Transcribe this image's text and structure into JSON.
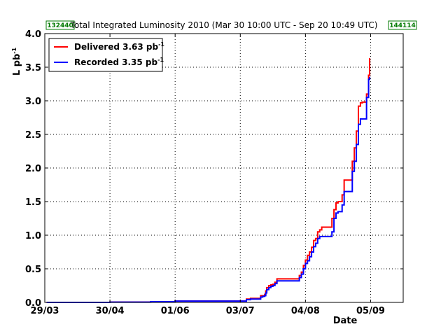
{
  "run_badges": {
    "start": "132440",
    "end": "144114",
    "border_color": "#007a00"
  },
  "chart_data": {
    "type": "line",
    "title": "Total Integrated Luminosity 2010 (Mar 30 10:00 UTC - Sep 20 10:49 UTC)",
    "xlabel": "Date",
    "ylabel": {
      "main": "L pb",
      "sup": "-1"
    },
    "xlim": [
      "2010-03-29",
      "2010-09-21"
    ],
    "ylim": [
      0,
      4.0
    ],
    "x_ticks": [
      {
        "date": "2010-03-29",
        "label": "29/03"
      },
      {
        "date": "2010-04-30",
        "label": "30/04"
      },
      {
        "date": "2010-06-01",
        "label": "01/06"
      },
      {
        "date": "2010-07-03",
        "label": "03/07"
      },
      {
        "date": "2010-08-04",
        "label": "04/08"
      },
      {
        "date": "2010-09-05",
        "label": "05/09"
      }
    ],
    "y_ticks": [
      {
        "value": 0.0,
        "label": "0.0"
      },
      {
        "value": 0.5,
        "label": "0.5"
      },
      {
        "value": 1.0,
        "label": "1.0"
      },
      {
        "value": 1.5,
        "label": "1.5"
      },
      {
        "value": 2.0,
        "label": "2.0"
      },
      {
        "value": 2.5,
        "label": "2.5"
      },
      {
        "value": 3.0,
        "label": "3.0"
      },
      {
        "value": 3.5,
        "label": "3.5"
      },
      {
        "value": 4.0,
        "label": "4.0"
      }
    ],
    "grid": true,
    "legend_position": "top-left",
    "series": [
      {
        "name": "Delivered 3.63 pb",
        "name_sup": "-1",
        "color": "#ff0000",
        "x": [
          "2010-03-30",
          "2010-04-30",
          "2010-05-20",
          "2010-06-01",
          "2010-06-30",
          "2010-07-06",
          "2010-07-08",
          "2010-07-13",
          "2010-07-14",
          "2010-07-15",
          "2010-07-15T12",
          "2010-07-16",
          "2010-07-17",
          "2010-07-18",
          "2010-07-19",
          "2010-07-20",
          "2010-07-21",
          "2010-07-22",
          "2010-07-31",
          "2010-08-01",
          "2010-08-02",
          "2010-08-03",
          "2010-08-04",
          "2010-08-05",
          "2010-08-06",
          "2010-08-07",
          "2010-08-08",
          "2010-08-09",
          "2010-08-10",
          "2010-08-11",
          "2010-08-12",
          "2010-08-13",
          "2010-08-17",
          "2010-08-18",
          "2010-08-19",
          "2010-08-20",
          "2010-08-22",
          "2010-08-23",
          "2010-08-25",
          "2010-08-27",
          "2010-08-28",
          "2010-08-29",
          "2010-08-30",
          "2010-08-31",
          "2010-09-01",
          "2010-09-03",
          "2010-09-04",
          "2010-09-04T12"
        ],
        "y": [
          0.0,
          0.005,
          0.01,
          0.02,
          0.02,
          0.05,
          0.06,
          0.1,
          0.1,
          0.12,
          0.17,
          0.22,
          0.25,
          0.26,
          0.27,
          0.3,
          0.35,
          0.35,
          0.35,
          0.4,
          0.45,
          0.55,
          0.63,
          0.7,
          0.75,
          0.82,
          0.92,
          0.95,
          1.05,
          1.08,
          1.12,
          1.12,
          1.25,
          1.38,
          1.48,
          1.5,
          1.6,
          1.82,
          1.82,
          2.1,
          2.3,
          2.55,
          2.92,
          2.97,
          2.98,
          3.1,
          3.38,
          3.63
        ]
      },
      {
        "name": "Recorded 3.35 pb",
        "name_sup": "-1",
        "color": "#0000ff",
        "x": [
          "2010-03-30",
          "2010-04-30",
          "2010-05-20",
          "2010-06-01",
          "2010-06-30",
          "2010-07-06",
          "2010-07-08",
          "2010-07-13",
          "2010-07-14",
          "2010-07-15",
          "2010-07-15T12",
          "2010-07-16",
          "2010-07-17",
          "2010-07-18",
          "2010-07-19",
          "2010-07-20",
          "2010-07-21",
          "2010-07-22",
          "2010-07-31",
          "2010-08-01",
          "2010-08-02",
          "2010-08-03",
          "2010-08-04",
          "2010-08-05",
          "2010-08-06",
          "2010-08-07",
          "2010-08-08",
          "2010-08-09",
          "2010-08-10",
          "2010-08-11",
          "2010-08-12",
          "2010-08-13",
          "2010-08-17",
          "2010-08-18",
          "2010-08-19",
          "2010-08-20",
          "2010-08-22",
          "2010-08-23",
          "2010-08-25",
          "2010-08-27",
          "2010-08-28",
          "2010-08-29",
          "2010-08-30",
          "2010-08-31",
          "2010-09-01",
          "2010-09-03",
          "2010-09-04",
          "2010-09-04T12"
        ],
        "y": [
          0.0,
          0.004,
          0.01,
          0.02,
          0.02,
          0.04,
          0.05,
          0.08,
          0.09,
          0.1,
          0.14,
          0.19,
          0.22,
          0.24,
          0.25,
          0.28,
          0.32,
          0.32,
          0.32,
          0.37,
          0.42,
          0.5,
          0.58,
          0.62,
          0.68,
          0.75,
          0.83,
          0.88,
          0.95,
          0.98,
          0.98,
          0.98,
          1.05,
          1.25,
          1.33,
          1.35,
          1.45,
          1.65,
          1.65,
          1.95,
          2.1,
          2.35,
          2.65,
          2.73,
          2.73,
          3.05,
          3.32,
          3.35
        ]
      }
    ]
  }
}
